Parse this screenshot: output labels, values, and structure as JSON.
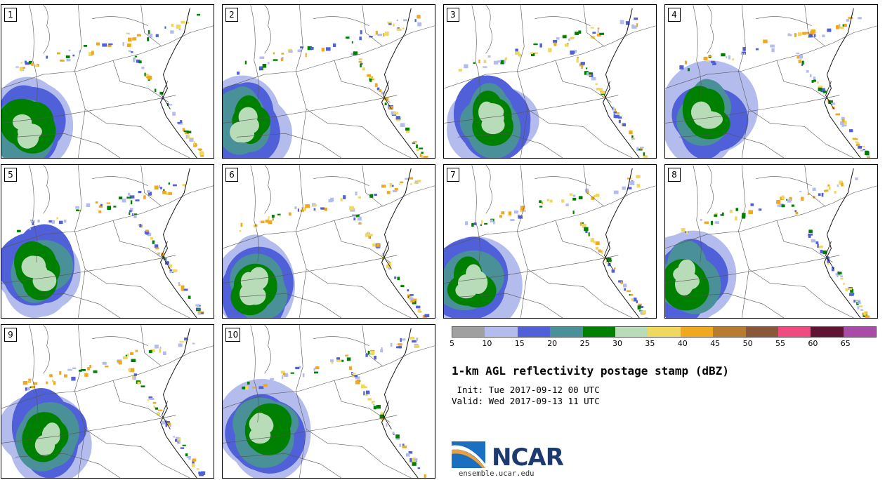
{
  "panels": [
    {
      "label": "1"
    },
    {
      "label": "2"
    },
    {
      "label": "3"
    },
    {
      "label": "4"
    },
    {
      "label": "5"
    },
    {
      "label": "6"
    },
    {
      "label": "7"
    },
    {
      "label": "8"
    },
    {
      "label": "9"
    },
    {
      "label": "10"
    }
  ],
  "colorbar": {
    "ticks": [
      "5",
      "10",
      "15",
      "20",
      "25",
      "30",
      "35",
      "40",
      "45",
      "50",
      "55",
      "60",
      "65"
    ],
    "colors": [
      "#a0a0a0",
      "#b4bcee",
      "#5060d8",
      "#4a9098",
      "#008000",
      "#b8dcb8",
      "#eed860",
      "#f0a820",
      "#b87c30",
      "#885838",
      "#ee4c80",
      "#5e1432",
      "#a84ca8"
    ]
  },
  "title": "1-km AGL reflectivity postage stamp (dBZ)",
  "init": " Init: Tue 2017-09-12 00 UTC",
  "valid": "Valid: Wed 2017-09-13 11 UTC",
  "logo": {
    "name": "NCAR",
    "url": "ensemble.ucar.edu"
  }
}
